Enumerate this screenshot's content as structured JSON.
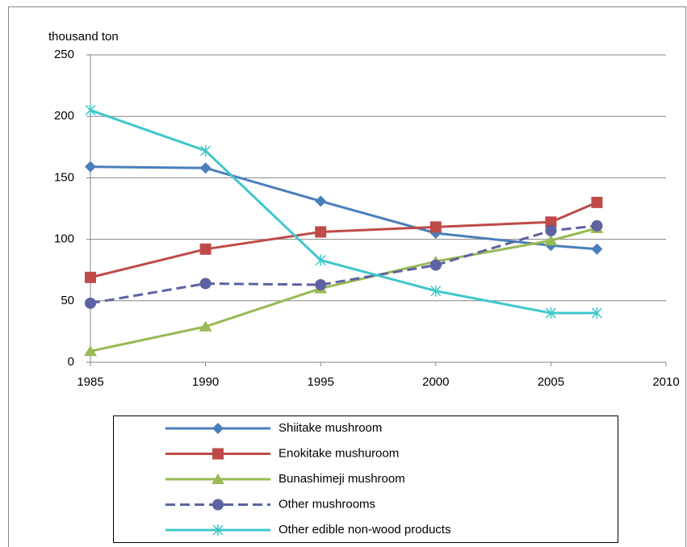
{
  "chart_data": {
    "type": "line",
    "y_label": "thousand ton",
    "x": [
      1985,
      1990,
      1995,
      2000,
      2005,
      2007
    ],
    "xlim": [
      1985,
      2010
    ],
    "xticks": [
      1985,
      1990,
      1995,
      2000,
      2005,
      2010
    ],
    "ylim": [
      0,
      250
    ],
    "yticks": [
      0,
      50,
      100,
      150,
      200,
      250
    ],
    "grid": true,
    "legend": "bottom",
    "series": [
      {
        "name": "Shiitake mushroom",
        "color": "#4a7ebb",
        "marker": "diamond",
        "dashed": false,
        "values": [
          159,
          158,
          131,
          105,
          95,
          92
        ]
      },
      {
        "name": "Enokitake mushuroom",
        "color": "#be4b48",
        "marker": "square",
        "dashed": false,
        "values": [
          69,
          92,
          106,
          110,
          114,
          130
        ]
      },
      {
        "name": "Bunashimeji mushroom",
        "color": "#98b954",
        "marker": "triangle",
        "dashed": false,
        "values": [
          9,
          29,
          60,
          82,
          99,
          109
        ]
      },
      {
        "name": "Other mushrooms",
        "color": "#5d62a2",
        "marker": "circle",
        "dashed": true,
        "values": [
          48,
          64,
          63,
          79,
          107,
          111
        ]
      },
      {
        "name": "Other edible non-wood products",
        "color": "#3fc7cc",
        "marker": "star",
        "dashed": false,
        "values": [
          205,
          172,
          83,
          58,
          40,
          40
        ]
      }
    ]
  }
}
